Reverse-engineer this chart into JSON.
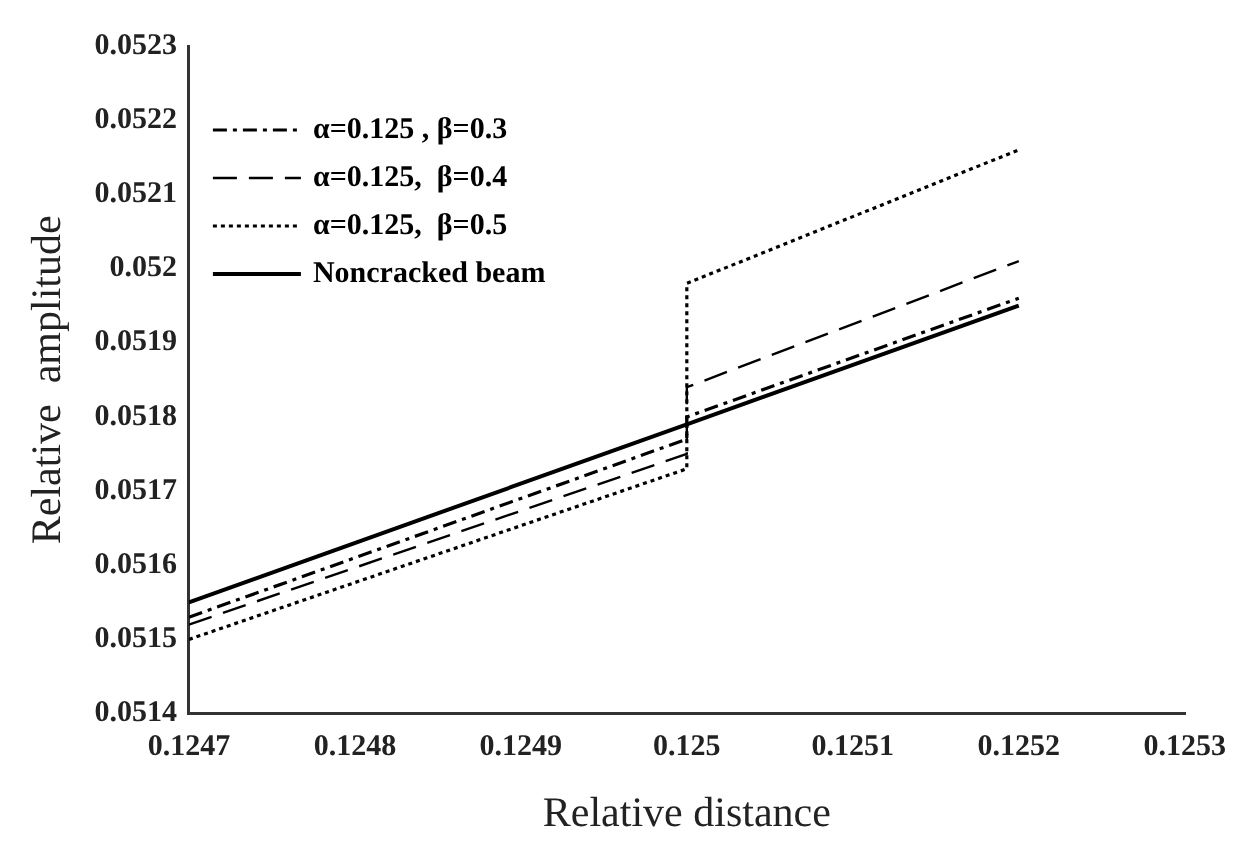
{
  "chart_data": {
    "type": "line",
    "xlabel": "Relative distance",
    "ylabel": "Relative  amplitude",
    "xlim": [
      0.1247,
      0.1253
    ],
    "xticks": [
      0.1247,
      0.1248,
      0.1249,
      0.125,
      0.1251,
      0.1252,
      0.1253
    ],
    "ylim": [
      0.0514,
      0.0523
    ],
    "yticks": [
      0.0514,
      0.0515,
      0.0516,
      0.0517,
      0.0518,
      0.0519,
      0.052,
      0.0521,
      0.0522,
      0.0523
    ],
    "grid": false,
    "legend": "top left",
    "marker": "none",
    "series": [
      {
        "name": "α=0.125 , β=0.3",
        "color": "#000000",
        "line_style": "dashdot",
        "x": [
          0.1247,
          0.125,
          0.125,
          0.1252
        ],
        "values": [
          0.05153,
          0.05177,
          0.0518,
          0.05196
        ]
      },
      {
        "name": "α=0.125,  β=0.4",
        "color": "#000000",
        "line_style": "dashed",
        "x": [
          0.1247,
          0.125,
          0.125,
          0.1252
        ],
        "values": [
          0.05152,
          0.05175,
          0.05184,
          0.05201
        ]
      },
      {
        "name": "α=0.125,  β=0.5",
        "color": "#000000",
        "line_style": "dotted",
        "x": [
          0.1247,
          0.125,
          0.125,
          0.1252
        ],
        "values": [
          0.0515,
          0.05173,
          0.05198,
          0.05216
        ]
      },
      {
        "name": "Noncracked beam",
        "color": "#000000",
        "line_style": "solid",
        "x": [
          0.1247,
          0.125,
          0.125,
          0.1252
        ],
        "values": [
          0.05155,
          0.05179,
          0.05179,
          0.05195
        ]
      }
    ]
  }
}
